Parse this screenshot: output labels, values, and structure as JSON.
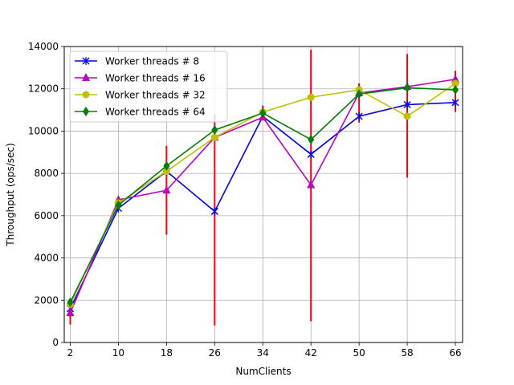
{
  "chart_data": {
    "type": "line",
    "title": "",
    "xlabel": "NumClients",
    "ylabel": "Throughput (ops/sec)",
    "x": [
      2,
      10,
      18,
      26,
      34,
      42,
      50,
      58,
      66
    ],
    "x_tick_labels": [
      "2",
      "10",
      "18",
      "26",
      "34",
      "42",
      "50",
      "58",
      "66"
    ],
    "y_ticks": [
      0,
      2000,
      4000,
      6000,
      8000,
      10000,
      12000,
      14000
    ],
    "y_tick_labels": [
      "0",
      "2000",
      "4000",
      "6000",
      "8000",
      "10000",
      "12000",
      "14000"
    ],
    "xlim": [
      1,
      67.2
    ],
    "ylim": [
      0,
      14000
    ],
    "grid": true,
    "legend_position": "top-left",
    "error_bar_color": "#ff0000",
    "series": [
      {
        "name": "Worker threads # 8",
        "color": "#0000ff",
        "marker": "x",
        "values": [
          1600,
          6350,
          8100,
          6200,
          10700,
          8900,
          10700,
          11250,
          11350
        ],
        "errors": [
          0,
          0,
          0,
          0,
          0,
          0,
          0,
          0,
          0
        ]
      },
      {
        "name": "Worker threads # 16",
        "color": "#bf00bf",
        "marker": "triangle",
        "values": [
          1400,
          6750,
          7200,
          9700,
          10650,
          7450,
          11800,
          12100,
          12450
        ],
        "errors": [
          550,
          0,
          0,
          0,
          0,
          0,
          0,
          0,
          400
        ]
      },
      {
        "name": "Worker threads # 32",
        "color": "#bfbf00",
        "marker": "circle",
        "values": [
          1800,
          6600,
          8100,
          9700,
          10900,
          11600,
          11950,
          10700,
          12250
        ],
        "errors": [
          0,
          250,
          0,
          0,
          300,
          0,
          300,
          0,
          0
        ]
      },
      {
        "name": "Worker threads # 64",
        "color": "#008000",
        "marker": "diamond",
        "values": [
          1900,
          6500,
          8350,
          10050,
          10850,
          9600,
          11750,
          12050,
          11950
        ],
        "errors": [
          0,
          0,
          0,
          0,
          0,
          0,
          0,
          0,
          0
        ]
      }
    ],
    "error_bars": [
      {
        "x": 2,
        "low": 850,
        "high": 1950
      },
      {
        "x": 10,
        "low": 6350,
        "high": 6850
      },
      {
        "x": 18,
        "low": 5100,
        "high": 9300
      },
      {
        "x": 26,
        "low": 800,
        "high": 10800
      },
      {
        "x": 34,
        "low": 10600,
        "high": 11200
      },
      {
        "x": 42,
        "low": 1000,
        "high": 13850
      },
      {
        "x": 50,
        "low": 10400,
        "high": 12250
      },
      {
        "x": 58,
        "low": 7800,
        "high": 13650
      },
      {
        "x": 66,
        "low": 10900,
        "high": 12850
      }
    ]
  }
}
